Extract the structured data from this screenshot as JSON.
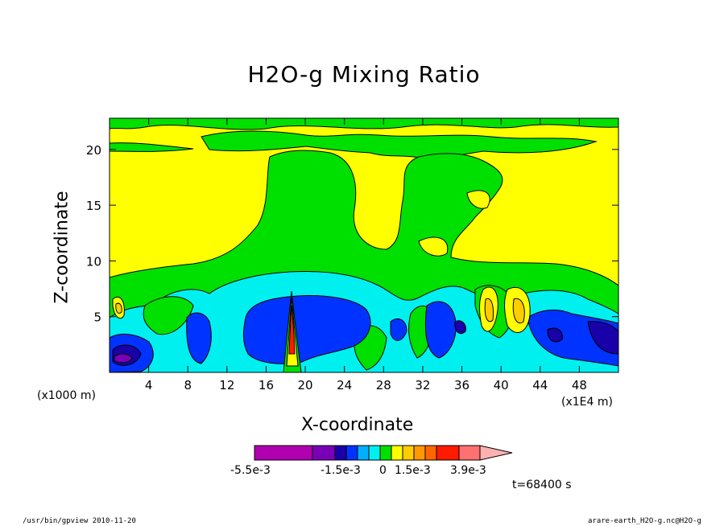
{
  "chart_data": {
    "type": "heatmap",
    "title": "H2O-g Mixing Ratio",
    "xlabel": "X-coordinate",
    "ylabel": "Z-coordinate",
    "x_unit": "(x1E4 m)",
    "y_unit": "(x1000 m)",
    "xlim": [
      0,
      52
    ],
    "ylim": [
      0,
      22.8
    ],
    "x_ticks": [
      "4",
      "8",
      "12",
      "16",
      "20",
      "24",
      "28",
      "32",
      "36",
      "40",
      "44",
      "48"
    ],
    "y_ticks": [
      "5",
      "10",
      "15",
      "20"
    ],
    "colorbar": {
      "labels": [
        "-5.5e-3",
        "-1.5e-3",
        "0",
        "1.5e-3",
        "3.9e-3"
      ],
      "colors": [
        "#b000b0",
        "#7a00b8",
        "#1a00a8",
        "#0033ff",
        "#00b0ff",
        "#00f0f0",
        "#00e000",
        "#ffff00",
        "#ffcc00",
        "#ff9900",
        "#ff6600",
        "#ff1a00",
        "#ff7070",
        "#ffb0b0"
      ]
    },
    "time_label": "t=68400 s"
  },
  "footer": {
    "left": "/usr/bin/gpview  2010-11-20",
    "right": "arare-earth_H2O-g.nc@H2O-g"
  }
}
